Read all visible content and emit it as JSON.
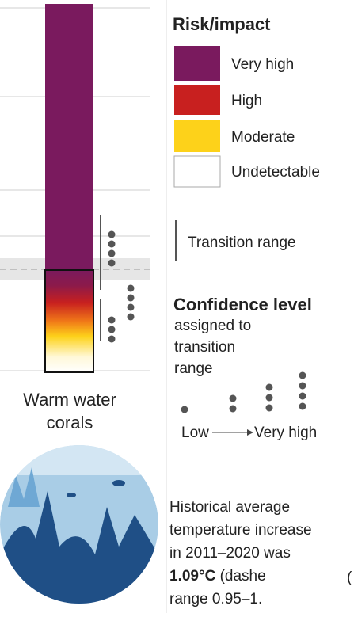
{
  "legend": {
    "title": "Risk/impact",
    "items": [
      "Very high",
      "High",
      "Moderate",
      "Undetectable"
    ],
    "transition": "Transition range"
  },
  "confidence": {
    "title": "Confidence level",
    "lines": [
      "assigned to",
      "transition",
      "range"
    ],
    "low": "Low",
    "high": "Very high"
  },
  "ember": {
    "label_lines": [
      "Warm water",
      "corals"
    ]
  },
  "note": {
    "lines": [
      "Historical average",
      "temperature increase",
      "in 2011–2020 was"
    ],
    "value": "1.09°C",
    "value_rest": " (dashe",
    "last": "range 0.95–1.",
    "edge": "("
  }
}
